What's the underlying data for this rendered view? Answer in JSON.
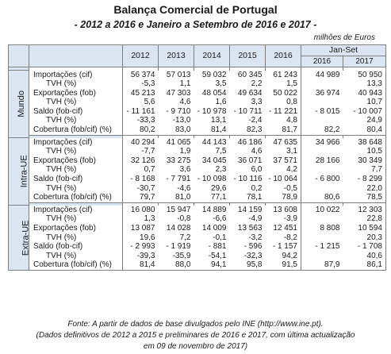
{
  "title": "Balança Comercial de Portugal",
  "subtitle": "- 2012 a 2016 e Janeiro a Setembro de 2016 e 2017 -",
  "units": "milhões de Euros",
  "header": {
    "years": [
      "2012",
      "2013",
      "2014",
      "2015",
      "2016"
    ],
    "janset_label": "Jan-Set",
    "janset_years": [
      "2016",
      "2017"
    ]
  },
  "sections": [
    {
      "name": "Mundo",
      "rows": [
        {
          "label": "Importações (cif)",
          "values": [
            "56 374",
            "57 013",
            "59 032",
            "60 345",
            "61 243",
            "44 989",
            "50 950"
          ]
        },
        {
          "label": "TVH (%)",
          "values": [
            "-5,3",
            "1,1",
            "3,5",
            "2,2",
            "1,5",
            "",
            "13,3"
          ]
        },
        {
          "label": "Exportações (fob)",
          "values": [
            "45 213",
            "47 303",
            "48 054",
            "49 634",
            "50 022",
            "36 974",
            "40 943"
          ]
        },
        {
          "label": "TVH (%)",
          "values": [
            "5,6",
            "4,6",
            "1,6",
            "3,3",
            "0,8",
            "",
            "10,7"
          ]
        },
        {
          "label": "Saldo (fob-cif)",
          "values": [
            "- 11 161",
            "- 9 710",
            "- 10 978",
            "- 10 711",
            "- 11 221",
            "- 8 015",
            "- 10 007"
          ]
        },
        {
          "label": "TVH (%)",
          "values": [
            "-33,3",
            "-13,0",
            "13,1",
            "-2,4",
            "4,8",
            "",
            "24,9"
          ]
        },
        {
          "label": "Cobertura (fob/cif) (%)",
          "values": [
            "80,2",
            "83,0",
            "81,4",
            "82,3",
            "81,7",
            "82,2",
            "80,4"
          ]
        }
      ]
    },
    {
      "name": "Intra-UE",
      "rows": [
        {
          "label": "Importações (cif)",
          "values": [
            "40 294",
            "41 065",
            "44 143",
            "46 186",
            "47 635",
            "34 966",
            "38 648"
          ]
        },
        {
          "label": "TVH (%)",
          "values": [
            "-7,7",
            "1,9",
            "7,5",
            "4,6",
            "3,1",
            "",
            "10,5"
          ]
        },
        {
          "label": "Exportações (fob)",
          "values": [
            "32 126",
            "33 275",
            "34 045",
            "36 071",
            "37 571",
            "28 166",
            "30 349"
          ]
        },
        {
          "label": "TVH (%)",
          "values": [
            "0,7",
            "3,6",
            "2,3",
            "6,0",
            "4,2",
            "",
            "7,7"
          ]
        },
        {
          "label": "Saldo (fob-cif)",
          "values": [
            "- 8 168",
            "- 7 791",
            "- 10 098",
            "- 10 116",
            "- 10 064",
            "- 6 800",
            "- 8 299"
          ]
        },
        {
          "label": "TVH (%)",
          "values": [
            "-30,7",
            "-4,6",
            "29,6",
            "0,2",
            "-0,5",
            "",
            "22,0"
          ]
        },
        {
          "label": "Cobertura (fob/cif) (%)",
          "values": [
            "79,7",
            "81,0",
            "77,1",
            "78,1",
            "78,9",
            "80,6",
            "78,5"
          ]
        }
      ]
    },
    {
      "name": "Extra-UE",
      "rows": [
        {
          "label": "Importações (cif)",
          "values": [
            "16 080",
            "15 947",
            "14 889",
            "14 159",
            "13 608",
            "10 022",
            "12 303"
          ]
        },
        {
          "label": "TVH (%)",
          "values": [
            "1,3",
            "-0,8",
            "-6,6",
            "-4,9",
            "-3,9",
            "",
            "22,8"
          ]
        },
        {
          "label": "Exportações (fob)",
          "values": [
            "13 087",
            "14 028",
            "14 009",
            "13 563",
            "12 451",
            "8 808",
            "10 594"
          ]
        },
        {
          "label": "TVH (%)",
          "values": [
            "19,6",
            "7,2",
            "-0,1",
            "-3,2",
            "-8,2",
            "",
            "20,3"
          ]
        },
        {
          "label": "Saldo (fob-cif)",
          "values": [
            "- 2 993",
            "- 1 919",
            "- 881",
            "- 596",
            "- 1 157",
            "- 1 215",
            "- 1 708"
          ]
        },
        {
          "label": "TVH (%)",
          "values": [
            "-39,3",
            "-35,9",
            "-54,1",
            "-32,3",
            "94,2",
            "",
            "40,6"
          ]
        },
        {
          "label": "Cobertura (fob/cif) (%)",
          "values": [
            "81,4",
            "88,0",
            "94,1",
            "95,8",
            "91,5",
            "87,9",
            "86,1"
          ]
        }
      ]
    }
  ],
  "footer": {
    "line1": "Fonte: A partir de dados de base divulgados pelo INE (http://www.ine.pt).",
    "line2": "(Dados definitivos de 2012 a 2015 e preliminares de 2016 e 2017, com última actualização",
    "line3": "em 09 de novembro de 2017)"
  }
}
